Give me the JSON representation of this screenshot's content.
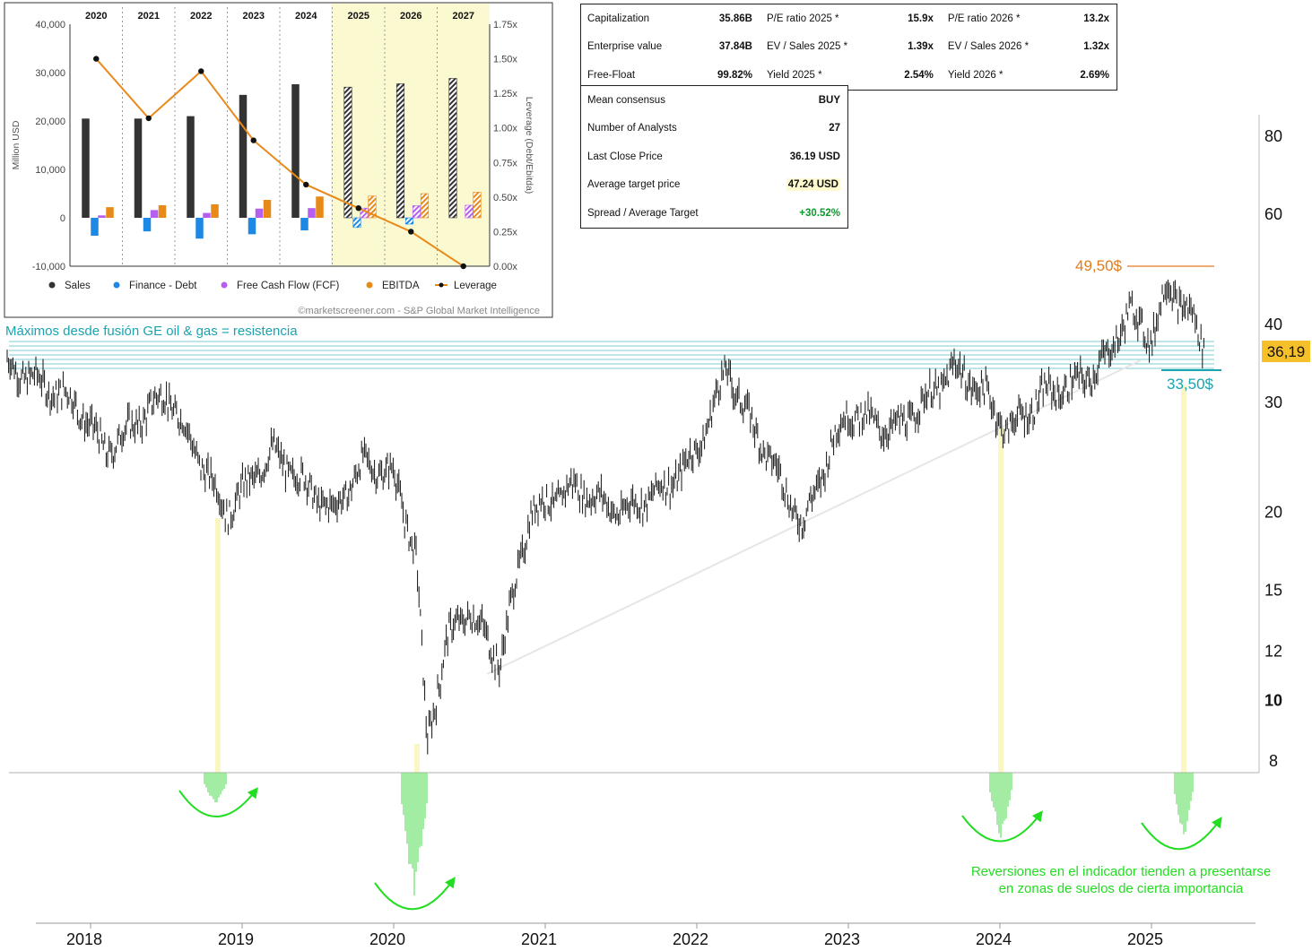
{
  "fundamentals_chart": {
    "years": [
      "2020",
      "2021",
      "2022",
      "2023",
      "2024",
      "2025",
      "2026",
      "2027"
    ],
    "forecast_years": [
      "2025",
      "2026",
      "2027"
    ],
    "left_axis_label": "Million USD",
    "left_ticks": [
      "40,000",
      "30,000",
      "20,000",
      "10,000",
      "0",
      "-10,000"
    ],
    "right_axis_label": "Leverage (Debt/Ebitda)",
    "right_ticks": [
      "1.75x",
      "1.50x",
      "1.25x",
      "1.00x",
      "0.75x",
      "0.50x",
      "0.25x",
      "0.00x"
    ],
    "legend": [
      "Sales",
      "Finance - Debt",
      "Free Cash Flow (FCF)",
      "EBITDA",
      "Leverage"
    ],
    "credit": "©marketscreener.com - S&P Global Market Intelligence"
  },
  "fin_table": {
    "rows": [
      [
        "Capitalization",
        "35.86B",
        "P/E ratio 2025 *",
        "15.9x",
        "P/E ratio 2026 *",
        "13.2x"
      ],
      [
        "Enterprise value",
        "37.84B",
        "EV / Sales 2025 *",
        "1.39x",
        "EV / Sales 2026 *",
        "1.32x"
      ],
      [
        "Free-Float",
        "99.82%",
        "Yield 2025 *",
        "2.54%",
        "Yield 2026 *",
        "2.69%"
      ]
    ]
  },
  "consensus_table": {
    "mean_consensus_label": "Mean consensus",
    "mean_consensus_value": "BUY",
    "analysts_label": "Number of Analysts",
    "analysts_value": "27",
    "last_close_label": "Last Close Price",
    "last_close_value": "36.19 USD",
    "avg_target_label": "Average target price",
    "avg_target_value": "47.24 USD",
    "spread_label": "Spread / Average Target",
    "spread_value": "+30.52%"
  },
  "price_chart": {
    "x_labels": [
      "2018",
      "2019",
      "2020",
      "2021",
      "2022",
      "2023",
      "2024",
      "2025"
    ],
    "y_labels": [
      "80",
      "60",
      "40",
      "30",
      "20",
      "15",
      "12",
      "10",
      "8"
    ],
    "last_price": "36,19",
    "high_label": "49,50$",
    "support_label": "33,50$",
    "resistance_label": "Máximos desde fusión GE oil & gas = resistencia",
    "note_line1": "Reversiones en el indicador tienden a presentarse",
    "note_line2": "en zonas de suelos de cierta importancia"
  },
  "colors": {
    "sales": "#333333",
    "debt": "#1e88e5",
    "fcf": "#b55ef0",
    "ebitda": "#e88a1a",
    "leverage": "#e88a1a",
    "forecast_bg": "#fbf9d0",
    "teal": "#1aa3b0",
    "orange_label": "#e07b20",
    "green": "#22dd22",
    "price_tag": "#f5c02a"
  },
  "chart_data": [
    {
      "type": "bar",
      "title": "",
      "categories": [
        "2020",
        "2021",
        "2022",
        "2023",
        "2024",
        "2025",
        "2026",
        "2027"
      ],
      "ylabel": "Million USD",
      "ylim": [
        -10000,
        40000
      ],
      "y2label": "Leverage (Debt/Ebitda)",
      "y2lim": [
        0,
        1.75
      ],
      "series": [
        {
          "name": "Sales",
          "values": [
            20500,
            20500,
            21000,
            25400,
            27600,
            27000,
            27700,
            28800
          ]
        },
        {
          "name": "Finance - Debt",
          "values": [
            -3700,
            -2800,
            -4300,
            -3400,
            -2600,
            -2000,
            -1300,
            0
          ]
        },
        {
          "name": "Free Cash Flow (FCF)",
          "values": [
            500,
            1600,
            1000,
            1900,
            2000,
            2000,
            2500,
            2600
          ]
        },
        {
          "name": "EBITDA",
          "values": [
            2200,
            2600,
            2800,
            3700,
            4400,
            4500,
            5000,
            5300
          ]
        },
        {
          "name": "Leverage",
          "axis": "right",
          "values": [
            1.5,
            1.07,
            1.41,
            0.91,
            0.59,
            0.42,
            0.25,
            0.0
          ]
        }
      ],
      "legend_position": "bottom",
      "grid": false
    },
    {
      "type": "line",
      "title": "",
      "scale": "log",
      "ylim": [
        7.8,
        85
      ],
      "x": [
        2017.4,
        2017.9,
        2018.1,
        2018.5,
        2018.9,
        2019.2,
        2019.6,
        2019.8,
        2020.0,
        2020.15,
        2020.22,
        2020.35,
        2020.5,
        2020.7,
        2020.9,
        2021.2,
        2021.5,
        2021.8,
        2022.0,
        2022.2,
        2022.35,
        2022.5,
        2022.7,
        2022.9,
        2023.0,
        2023.3,
        2023.5,
        2023.7,
        2023.9,
        2024.05,
        2024.3,
        2024.5,
        2024.7,
        2024.85,
        2025.0,
        2025.1,
        2025.25,
        2025.35
      ],
      "y": [
        35,
        30,
        25,
        31,
        20,
        25,
        20,
        24,
        23,
        17,
        8.5,
        12.5,
        14,
        11.5,
        20,
        22,
        20,
        22,
        25,
        34,
        28,
        24,
        19,
        26,
        29,
        27,
        30,
        34,
        31,
        27,
        31,
        32,
        35,
        42,
        38,
        46,
        42,
        36.19
      ],
      "annotations": [
        "49,50$",
        "33,50$",
        "36,19"
      ],
      "grid": false
    }
  ]
}
